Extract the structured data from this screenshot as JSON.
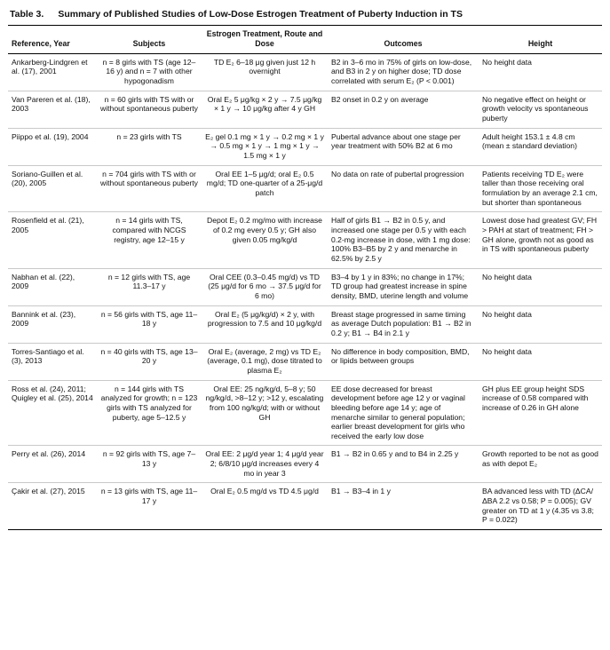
{
  "table": {
    "label": "Table 3.",
    "title": "Summary of Published Studies of Low-Dose Estrogen Treatment of Puberty Induction in TS",
    "columns": [
      "Reference, Year",
      "Subjects",
      "Estrogen Treatment, Route and Dose",
      "Outcomes",
      "Height"
    ],
    "rows": [
      {
        "reference": "Ankarberg-Lindgren et al. (17), 2001",
        "subjects": "n = 8 girls with TS (age 12–16 y) and n = 7 with other hypogonadism",
        "treatment": "TD E₂ 6–18 μg given just 12 h overnight",
        "outcomes": "B2 in 3–6 mo in 75% of girls on low-dose, and B3 in 2 y on higher dose; TD dose correlated with serum E₂ (P < 0.001)",
        "height": "No height data"
      },
      {
        "reference": "Van Pareren et al. (18), 2003",
        "subjects": "n = 60 girls with TS with or without spontaneous puberty",
        "treatment": "Oral E₂ 5 μg/kg × 2 y → 7.5 μg/kg × 1 y → 10 μg/kg after 4 y GH",
        "outcomes": "B2 onset in 0.2 y on average",
        "height": "No negative effect on height or growth velocity vs spontaneous puberty"
      },
      {
        "reference": "Piippo et al. (19), 2004",
        "subjects": "n = 23 girls with TS",
        "treatment": "E₂ gel 0.1 mg × 1 y → 0.2 mg × 1 y → 0.5 mg × 1 y → 1 mg × 1 y → 1.5 mg × 1 y",
        "outcomes": "Pubertal advance about one stage per year treatment with 50% B2 at 6 mo",
        "height": "Adult height 153.1 ± 4.8 cm (mean ± standard deviation)"
      },
      {
        "reference": "Soriano-Guillen et al. (20), 2005",
        "subjects": "n = 704 girls with TS with or without spontaneous puberty",
        "treatment": "Oral EE 1–5 μg/d; oral E₂ 0.5 mg/d; TD one-quarter of a 25-μg/d patch",
        "outcomes": "No data on rate of pubertal progression",
        "height": "Patients receiving TD E₂ were taller than those receiving oral formulation by an average 2.1 cm, but shorter than spontaneous"
      },
      {
        "reference": "Rosenfield et al. (21), 2005",
        "subjects": "n = 14 girls with TS, compared with NCGS registry, age 12–15 y",
        "treatment": "Depot E₂ 0.2 mg/mo with increase of 0.2 mg every 0.5 y; GH also given 0.05 mg/kg/d",
        "outcomes": "Half of girls B1 → B2 in 0.5 y, and increased one stage per 0.5 y with each 0.2-mg increase in dose, with 1 mg dose: 100% B3–B5 by 2 y and menarche in 62.5% by 2.5 y",
        "height": "Lowest dose had greatest GV; FH > PAH at start of treatment; FH > GH alone, growth not as good as in TS with spontaneous puberty"
      },
      {
        "reference": "Nabhan et al. (22), 2009",
        "subjects": "n = 12 girls with TS, age 11.3–17 y",
        "treatment": "Oral CEE (0.3–0.45 mg/d) vs TD (25 μg/d for 6 mo → 37.5 μg/d for 6 mo)",
        "outcomes": "B3–4 by 1 y in 83%; no change in 17%; TD group had greatest increase in spine density, BMD, uterine length and volume",
        "height": "No height data"
      },
      {
        "reference": "Bannink et al. (23), 2009",
        "subjects": "n = 56 girls with TS, age 11–18 y",
        "treatment": "Oral E₂ (5 μg/kg/d) × 2 y, with progression to 7.5 and 10 μg/kg/d",
        "outcomes": "Breast stage progressed in same timing as average Dutch population: B1 → B2 in 0.2 y; B1 → B4 in 2.1 y",
        "height": "No height data"
      },
      {
        "reference": "Torres-Santiago et al. (3), 2013",
        "subjects": "n = 40 girls with TS, age 13–20 y",
        "treatment": "Oral E₂ (average, 2 mg) vs TD E₂ (average, 0.1 mg), dose titrated to plasma E₂",
        "outcomes": "No difference in body composition, BMD, or lipids between groups",
        "height": "No height data"
      },
      {
        "reference": "Ross et al. (24), 2011; Quigley et al. (25), 2014",
        "subjects": "n = 144 girls with TS analyzed for growth; n = 123 girls with TS analyzed for puberty, age 5–12.5 y",
        "treatment": "Oral EE: 25 ng/kg/d, 5–8 y; 50 ng/kg/d, >8–12 y; >12 y, escalating from 100 ng/kg/d; with or without GH",
        "outcomes": "EE dose decreased for breast development before age 12 y or vaginal bleeding before age 14 y; age of menarche similar to general population; earlier breast development for girls who received the early low dose",
        "height": "GH plus EE group height SDS increase of 0.58 compared with increase of 0.26 in GH alone"
      },
      {
        "reference": "Perry et al. (26), 2014",
        "subjects": "n = 92 girls with TS, age 7–13 y",
        "treatment": "Oral EE: 2 μg/d year 1; 4 μg/d year 2; 6/8/10 μg/d increases every 4 mo in year 3",
        "outcomes": "B1 → B2 in 0.65 y and to B4 in 2.25 y",
        "height": "Growth reported to be not as good as with depot E₂"
      },
      {
        "reference": "Çakir et al. (27), 2015",
        "subjects": "n = 13 girls with TS, age 11–17 y",
        "treatment": "Oral E₂ 0.5 mg/d vs TD 4.5 μg/d",
        "outcomes": "B1 → B3–4 in 1 y",
        "height": "BA advanced less with TD (ΔCA/ΔBA 2.2 vs 0.58; P = 0.005); GV greater on TD at 1 y (4.35 vs 3.8; P = 0.022)"
      }
    ]
  }
}
